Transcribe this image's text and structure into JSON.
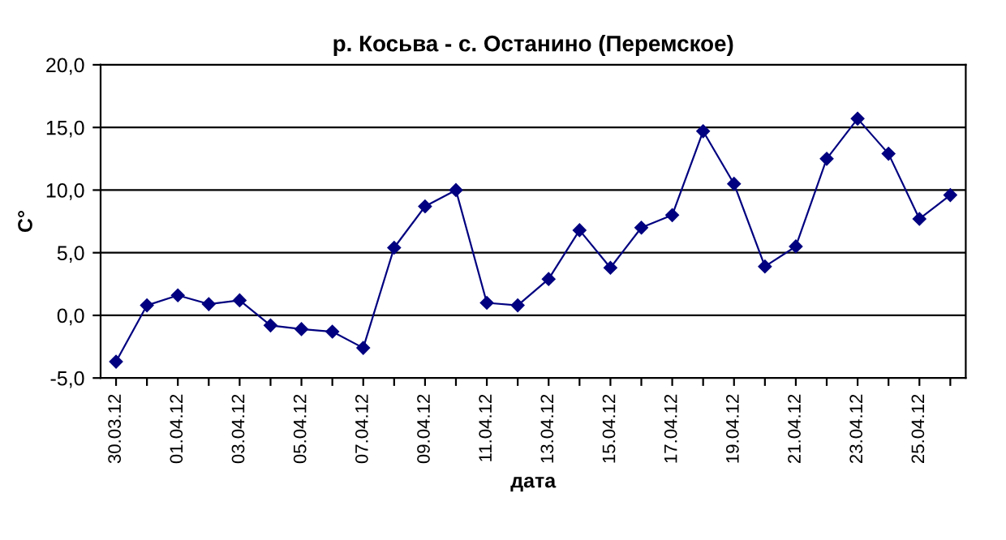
{
  "chart_data": {
    "type": "line",
    "title": "р. Косьва - с. Останино (Перемское)",
    "xlabel": "дата",
    "ylabel": "С°",
    "categories": [
      "30.03.12",
      null,
      "01.04.12",
      null,
      "03.04.12",
      null,
      "05.04.12",
      null,
      "07.04.12",
      null,
      "09.04.12",
      null,
      "11.04.12",
      null,
      "13.04.12",
      null,
      "15.04.12",
      null,
      "17.04.12",
      null,
      "19.04.12",
      null,
      "21.04.12",
      null,
      "23.04.12",
      null,
      "25.04.12",
      null
    ],
    "series": [
      {
        "color": "#000080",
        "values": [
          -3.7,
          0.8,
          1.6,
          0.9,
          1.2,
          -0.8,
          -1.1,
          -1.3,
          -2.6,
          5.4,
          8.7,
          10.0,
          1.0,
          0.8,
          2.9,
          6.8,
          3.8,
          7.0,
          8.0,
          14.7,
          10.5,
          3.9,
          5.5,
          12.5,
          15.7,
          12.9,
          7.7,
          9.6
        ]
      }
    ],
    "ylim": [
      -5,
      20
    ],
    "yticks": [
      {
        "value": -5,
        "label": "-5,0"
      },
      {
        "value": 0,
        "label": "0,0"
      },
      {
        "value": 5,
        "label": "5,0"
      },
      {
        "value": 10,
        "label": "10,0"
      },
      {
        "value": 15,
        "label": "15,0"
      },
      {
        "value": 20,
        "label": "20,0"
      }
    ],
    "grid": "y",
    "marker": "diamond",
    "line_style": "solid",
    "legend": false
  }
}
